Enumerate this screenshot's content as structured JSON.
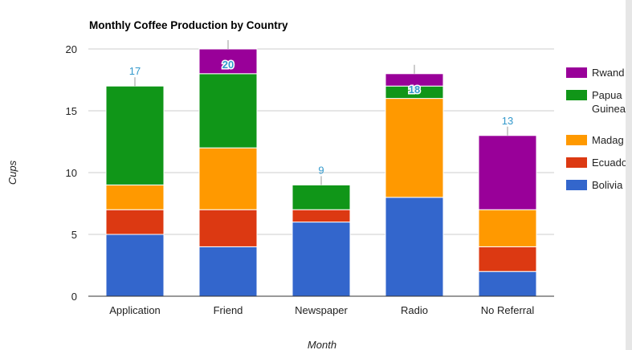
{
  "chart_data": {
    "type": "bar",
    "stacked": true,
    "title": "Monthly Coffee Production by Country",
    "xlabel": "Month",
    "ylabel": "Cups",
    "ylim": [
      0,
      20
    ],
    "yticks": [
      0,
      5,
      10,
      15,
      20
    ],
    "grid": true,
    "legend_position": "right",
    "categories": [
      "Application",
      "Friend",
      "Newspaper",
      "Radio",
      "No Referral"
    ],
    "series": [
      {
        "name": "Bolivia",
        "color": "#3366cc",
        "values": [
          5,
          4,
          6,
          8,
          2
        ]
      },
      {
        "name": "Ecuador",
        "color": "#dc3912",
        "values": [
          2,
          3,
          1,
          0,
          2
        ]
      },
      {
        "name": "Madagascar",
        "color": "#ff9900",
        "values": [
          2,
          5,
          0,
          8,
          3
        ]
      },
      {
        "name": "Papua New Guinea",
        "color": "#109618",
        "values": [
          8,
          6,
          2,
          1,
          0
        ]
      },
      {
        "name": "Rwanda",
        "color": "#990099",
        "values": [
          0,
          2,
          0,
          1,
          6
        ]
      }
    ],
    "totals": [
      17,
      20,
      9,
      18,
      13
    ],
    "legend_labels": [
      {
        "series": "Rwanda",
        "lines": [
          "Rwand"
        ]
      },
      {
        "series": "Papua New Guinea",
        "lines": [
          "Papua",
          "Guinea"
        ]
      },
      {
        "series": "Madagascar",
        "lines": [
          "Madag"
        ]
      },
      {
        "series": "Ecuador",
        "lines": [
          "Ecuado"
        ]
      },
      {
        "series": "Bolivia",
        "lines": [
          "Bolivia"
        ]
      }
    ]
  }
}
